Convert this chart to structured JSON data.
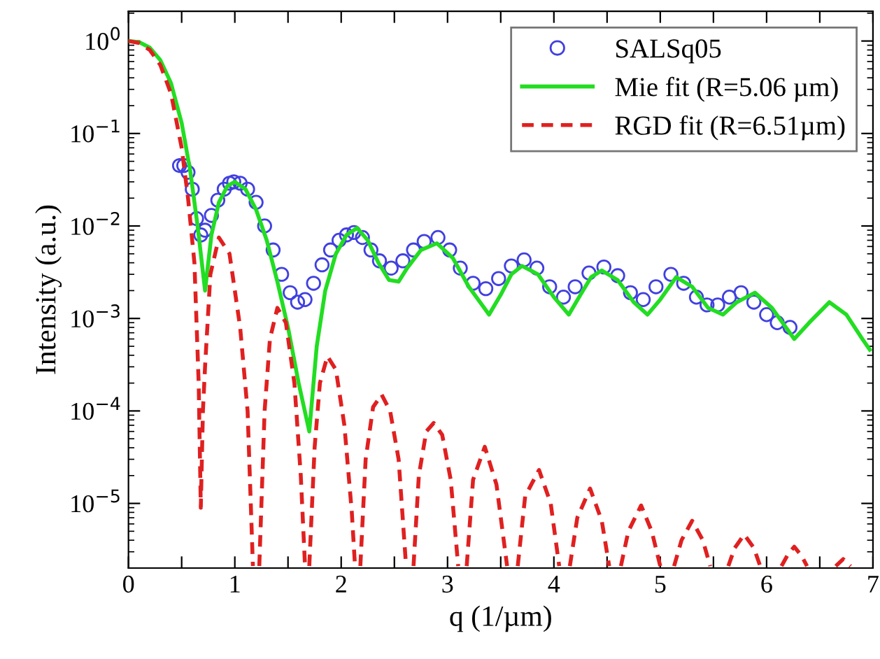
{
  "chart_data": {
    "type": "line",
    "xlabel": "q (1/µm)",
    "ylabel": "Intensity (a.u.)",
    "log": "y",
    "grid": false,
    "legend": "top right",
    "xlim": [
      0,
      7
    ],
    "xticks": [
      0,
      {
        "value": 0.5,
        "label": null
      },
      1,
      {
        "value": 1.5,
        "label": null
      },
      2,
      {
        "value": 2.5,
        "label": null
      },
      3,
      {
        "value": 3.5,
        "label": null
      },
      4,
      {
        "value": 4.5,
        "label": null
      },
      5,
      {
        "value": 5.5,
        "label": null
      },
      6,
      {
        "value": 6.5,
        "label": null
      },
      7
    ],
    "ylim": [
      2e-06,
      2.1
    ],
    "yticks": [
      {
        "value": 1e-05,
        "label": "10$^{−5}$"
      },
      {
        "value": 0.0001,
        "label": "10$^{−4}$"
      },
      {
        "value": 0.001,
        "label": "10$^{−3}$"
      },
      {
        "value": 0.01,
        "label": "10$^{−2}$"
      },
      {
        "value": 0.1,
        "label": "10$^{−1}$"
      },
      {
        "value": 1,
        "label": "10$^{0}$"
      }
    ],
    "series": [
      {
        "name": "SALSq05",
        "type": "scatter",
        "marker": "circle",
        "color": "#4040e0",
        "x": [
          0.48,
          0.52,
          0.56,
          0.6,
          0.64,
          0.68,
          0.72,
          0.78,
          0.84,
          0.9,
          0.95,
          0.99,
          1.05,
          1.12,
          1.2,
          1.28,
          1.36,
          1.44,
          1.52,
          1.59,
          1.66,
          1.74,
          1.82,
          1.9,
          1.98,
          2.05,
          2.12,
          2.2,
          2.28,
          2.36,
          2.47,
          2.58,
          2.68,
          2.78,
          2.91,
          3.02,
          3.12,
          3.24,
          3.36,
          3.48,
          3.6,
          3.72,
          3.84,
          3.96,
          4.09,
          4.2,
          4.33,
          4.47,
          4.6,
          4.72,
          4.84,
          4.96,
          5.1,
          5.22,
          5.34,
          5.44,
          5.54,
          5.65,
          5.76,
          5.88,
          6.0,
          6.1,
          6.22
        ],
        "values": [
          0.045,
          0.045,
          0.038,
          0.025,
          0.012,
          0.008,
          0.009,
          0.013,
          0.019,
          0.025,
          0.029,
          0.03,
          0.029,
          0.025,
          0.018,
          0.01,
          0.0055,
          0.003,
          0.0019,
          0.0015,
          0.0016,
          0.0024,
          0.0038,
          0.0055,
          0.007,
          0.008,
          0.0085,
          0.0075,
          0.0055,
          0.0042,
          0.0035,
          0.0042,
          0.0055,
          0.0068,
          0.0075,
          0.0055,
          0.0035,
          0.0024,
          0.0021,
          0.0027,
          0.0037,
          0.0043,
          0.0035,
          0.0022,
          0.0017,
          0.0022,
          0.0031,
          0.0036,
          0.0029,
          0.0019,
          0.0016,
          0.0022,
          0.003,
          0.0024,
          0.0017,
          0.0014,
          0.0014,
          0.0017,
          0.0019,
          0.0015,
          0.0011,
          0.0009,
          0.0008
        ]
      },
      {
        "name": "Mie fit (R=5.06 µm)",
        "line_style": "solid",
        "color": "#22dd22",
        "x": [
          0,
          0.1,
          0.2,
          0.3,
          0.4,
          0.5,
          0.58,
          0.65,
          0.72,
          0.78,
          0.85,
          0.93,
          1.0,
          1.1,
          1.2,
          1.3,
          1.4,
          1.5,
          1.6,
          1.7,
          1.77,
          1.85,
          1.95,
          2.05,
          2.15,
          2.25,
          2.35,
          2.45,
          2.54,
          2.62,
          2.75,
          2.9,
          3.05,
          3.2,
          3.39,
          3.5,
          3.6,
          3.7,
          3.85,
          4.0,
          4.14,
          4.25,
          4.35,
          4.45,
          4.6,
          4.75,
          4.88,
          5.0,
          5.15,
          5.3,
          5.45,
          5.59,
          5.72,
          5.89,
          6.05,
          6.26,
          6.4,
          6.59,
          6.75,
          6.9,
          6.97
        ],
        "values": [
          1,
          0.97,
          0.85,
          0.62,
          0.35,
          0.13,
          0.04,
          0.01,
          0.002,
          0.008,
          0.018,
          0.027,
          0.03,
          0.025,
          0.015,
          0.007,
          0.0025,
          0.0008,
          0.0002,
          6e-05,
          0.0005,
          0.002,
          0.005,
          0.008,
          0.0095,
          0.007,
          0.004,
          0.0026,
          0.0025,
          0.0035,
          0.0055,
          0.0065,
          0.0045,
          0.0022,
          0.0011,
          0.0018,
          0.003,
          0.0037,
          0.003,
          0.0017,
          0.0011,
          0.0018,
          0.0028,
          0.0033,
          0.0026,
          0.0015,
          0.0011,
          0.0016,
          0.0028,
          0.0022,
          0.0013,
          0.0011,
          0.0015,
          0.0019,
          0.0013,
          0.0006,
          0.0009,
          0.0015,
          0.0011,
          0.0006,
          0.00046
        ]
      },
      {
        "name": "RGD fit (R=6.51µm)",
        "line_style": "dashed",
        "color": "#e02020",
        "x": [
          0,
          0.1,
          0.2,
          0.3,
          0.4,
          0.5,
          0.56,
          0.62,
          0.66,
          0.68,
          0.7,
          0.72,
          0.77,
          0.85,
          0.95,
          1.05,
          1.12,
          1.17,
          1.2,
          1.23,
          1.28,
          1.33,
          1.4,
          1.48,
          1.56,
          1.62,
          1.66,
          1.68,
          1.7,
          1.75,
          1.8,
          1.87,
          1.95,
          2.03,
          2.1,
          2.13,
          2.15,
          2.18,
          2.23,
          2.3,
          2.38,
          2.46,
          2.54,
          2.61,
          2.65,
          2.68,
          2.73,
          2.8,
          2.87,
          2.95,
          3.03,
          3.1,
          3.15,
          3.18,
          3.24,
          3.35,
          3.46,
          3.56,
          3.6,
          3.66,
          3.73,
          3.86,
          3.97,
          4.05,
          4.1,
          4.15,
          4.22,
          4.34,
          4.45,
          4.52,
          4.58,
          4.63,
          4.7,
          4.82,
          4.92,
          5.0,
          5.06,
          5.13,
          5.2,
          5.3,
          5.4,
          5.47,
          5.55,
          5.64,
          5.7,
          5.79,
          5.88,
          5.94,
          6.04,
          6.14,
          6.2,
          6.26,
          6.33,
          6.38,
          6.5,
          6.65,
          6.72,
          6.79
        ],
        "values": [
          1,
          0.95,
          0.8,
          0.55,
          0.27,
          0.07,
          0.02,
          0.004,
          0.0002,
          9e-06,
          0.0001,
          0.0003,
          0.003,
          0.0075,
          0.005,
          0.0008,
          0.0001,
          2.1e-06,
          null,
          2.1e-06,
          0.0001,
          0.0006,
          0.0013,
          0.0009,
          0.0002,
          2e-05,
          2.1e-06,
          null,
          2.1e-06,
          4e-05,
          0.0002,
          0.00039,
          0.00028,
          7e-05,
          8e-06,
          2.1e-06,
          null,
          2.1e-06,
          3e-05,
          0.00011,
          0.00015,
          0.0001,
          3e-05,
          2.1e-06,
          null,
          2.1e-06,
          2e-05,
          6e-05,
          7.4e-05,
          5.5e-05,
          1.8e-05,
          2.1e-06,
          null,
          2.1e-06,
          1.8e-05,
          4.1e-05,
          1.6e-05,
          2.1e-06,
          null,
          2.1e-06,
          1.2e-05,
          2.3e-05,
          1e-05,
          2.1e-06,
          null,
          2.1e-06,
          7e-06,
          1.45e-05,
          6.5e-06,
          2.1e-06,
          null,
          2.1e-06,
          5e-06,
          9.5e-06,
          5e-06,
          2.1e-06,
          null,
          2.1e-06,
          4e-06,
          6.5e-06,
          4e-06,
          2.1e-06,
          null,
          2.1e-06,
          3.3e-06,
          4.6e-06,
          3.3e-06,
          2.1e-06,
          null,
          2.1e-06,
          2.8e-06,
          3.4e-06,
          2.7e-06,
          2.1e-06,
          null,
          2.1e-06,
          2.5e-06,
          2.1e-06
        ]
      }
    ]
  }
}
